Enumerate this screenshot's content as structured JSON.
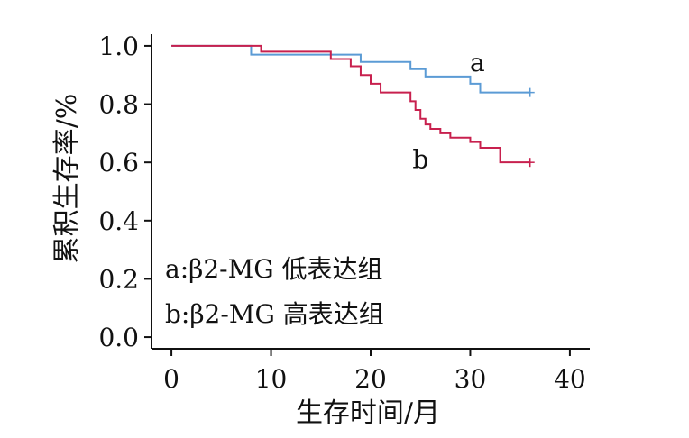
{
  "chart_data": {
    "type": "line",
    "title": "",
    "xlabel": "生存时间/月",
    "ylabel": "累积生存率/%",
    "xlim": [
      -2,
      42
    ],
    "ylim": [
      -0.04,
      1.04
    ],
    "x_ticks": [
      0,
      10,
      20,
      30,
      40
    ],
    "x_tick_labels": [
      "0",
      "10",
      "20",
      "30",
      "40"
    ],
    "y_ticks": [
      0.0,
      0.2,
      0.4,
      0.6,
      0.8,
      1.0
    ],
    "y_tick_labels": [
      "0.0",
      "0.2",
      "0.4",
      "0.6",
      "0.8",
      "1.0"
    ],
    "grid": false,
    "legend_lines": [
      "a:β2-MG 低表达组",
      "b:β2-MG 高表达组"
    ],
    "legend_position": "bottom-left",
    "series": [
      {
        "label": "a",
        "color": "#5b9bd5",
        "steps": [
          [
            0,
            1.0
          ],
          [
            8,
            0.97
          ],
          [
            19,
            0.945
          ],
          [
            24,
            0.92
          ],
          [
            25.5,
            0.895
          ],
          [
            30,
            0.87
          ],
          [
            31,
            0.84
          ],
          [
            36,
            0.84
          ]
        ],
        "censor_x": [
          36
        ]
      },
      {
        "label": "b",
        "color": "#c8204e",
        "steps": [
          [
            0,
            1.0
          ],
          [
            9,
            0.98
          ],
          [
            16,
            0.955
          ],
          [
            18,
            0.93
          ],
          [
            19,
            0.9
          ],
          [
            20,
            0.87
          ],
          [
            21,
            0.84
          ],
          [
            24,
            0.81
          ],
          [
            24.5,
            0.78
          ],
          [
            25,
            0.75
          ],
          [
            25.5,
            0.73
          ],
          [
            26,
            0.715
          ],
          [
            27,
            0.7
          ],
          [
            28,
            0.685
          ],
          [
            30,
            0.67
          ],
          [
            31,
            0.65
          ],
          [
            33,
            0.6
          ],
          [
            36,
            0.6
          ]
        ],
        "censor_x": [
          36
        ]
      }
    ]
  }
}
